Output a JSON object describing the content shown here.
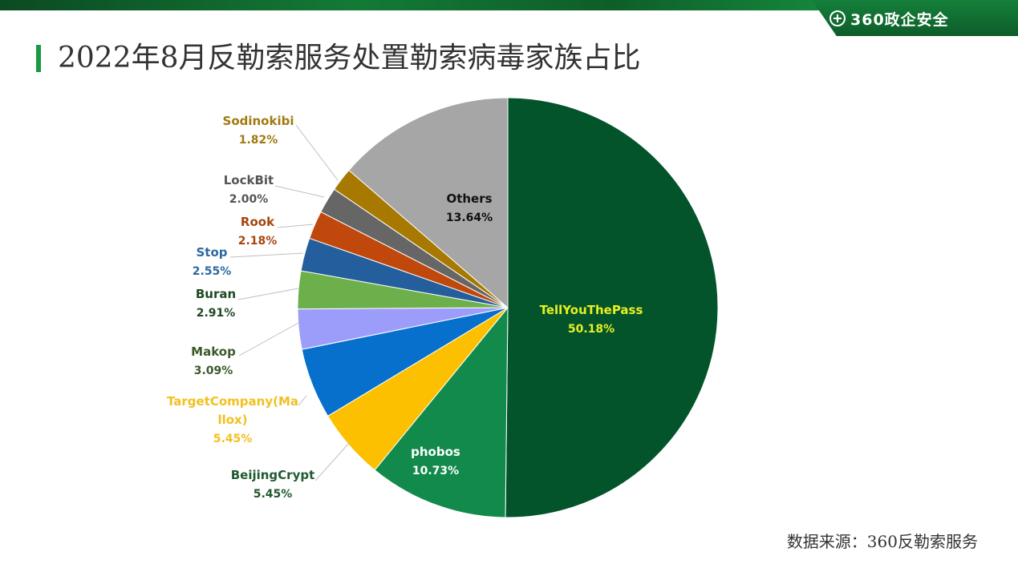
{
  "header": {
    "logo_text": "360政企安全",
    "logo_icon": "plus-circle-icon",
    "title": "2022年8月反勒索服务处置勒索病毒家族占比"
  },
  "footer": {
    "source": "数据来源：360反勒索服务"
  },
  "chart_data": {
    "type": "pie",
    "title": "2022年8月反勒索服务处置勒索病毒家族占比",
    "slices": [
      {
        "label": "TellYouThePass",
        "value_label": "50.18%",
        "value": 50.18,
        "color": "#03532b",
        "label_color": "#e8f020"
      },
      {
        "label": "phobos",
        "value_label": "10.73%",
        "value": 10.73,
        "color": "#128a4b",
        "label_color": "#ffffff"
      },
      {
        "label": "BeijingCrypt",
        "value_label": "5.45%",
        "value": 5.45,
        "color": "#fdc000",
        "label_color": "#1f5a30"
      },
      {
        "label": "TargetCompany(Mallox)",
        "label_lines": [
          "TargetCompany(Ma",
          "llox)"
        ],
        "value_label": "5.45%",
        "value": 5.45,
        "color": "#0770cc",
        "label_color": "#f2c020"
      },
      {
        "label": "Makop",
        "value_label": "3.09%",
        "value": 3.09,
        "color": "#9c9cfb",
        "label_color": "#3b5a2a"
      },
      {
        "label": "Buran",
        "value_label": "2.91%",
        "value": 2.91,
        "color": "#6db04b",
        "label_color": "#1d4a22"
      },
      {
        "label": "Stop",
        "value_label": "2.55%",
        "value": 2.55,
        "color": "#245e9c",
        "label_color": "#2c6aa0"
      },
      {
        "label": "Rook",
        "value_label": "2.18%",
        "value": 2.18,
        "color": "#c0480c",
        "label_color": "#a4470e"
      },
      {
        "label": "LockBit",
        "value_label": "2.00%",
        "value": 2.0,
        "color": "#666666",
        "label_color": "#555555"
      },
      {
        "label": "Sodinokibi",
        "value_label": "1.82%",
        "value": 1.82,
        "color": "#a87900",
        "label_color": "#a07a10"
      },
      {
        "label": "Others",
        "value_label": "13.64%",
        "value": 13.64,
        "color": "#a6a6a6",
        "label_color": "#111111"
      }
    ]
  }
}
